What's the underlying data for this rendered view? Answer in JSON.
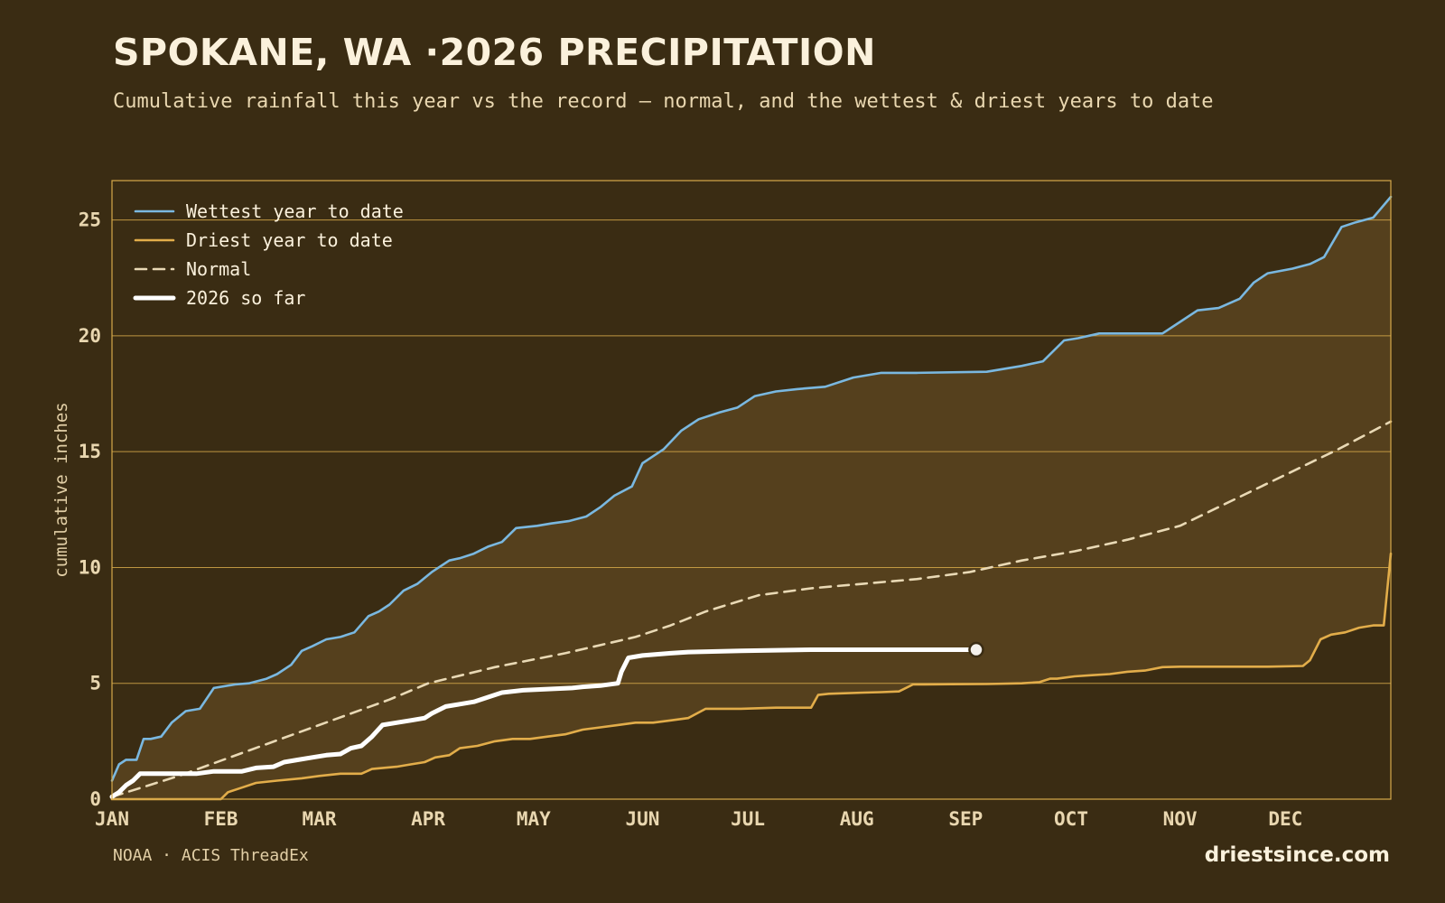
{
  "header": {
    "title": "SPOKANE, WA ·2026 PRECIPITATION",
    "subtitle": "Cumulative rainfall this year vs the record — normal, and the wettest & driest years to date"
  },
  "footer": {
    "source": "NOAA · ACIS ThreadEx",
    "brand": "driestsince.com"
  },
  "colors": {
    "background": "#3a2c13",
    "band_fill": "#55401d",
    "frame": "#d6a94a",
    "wettest": "#7ab8e0",
    "driest": "#e2ad4a",
    "normal": "#e9d9b5",
    "current": "#ffffff"
  },
  "chart_data": {
    "type": "line",
    "title": "SPOKANE, WA ·2026 PRECIPITATION",
    "xlabel": "",
    "ylabel": "cumulative inches",
    "x_unit": "day of year",
    "xlim": [
      1,
      365
    ],
    "ylim": [
      0,
      26.7
    ],
    "x_ticks": [
      {
        "label": "JAN",
        "day": 1
      },
      {
        "label": "FEB",
        "day": 32
      },
      {
        "label": "MAR",
        "day": 60
      },
      {
        "label": "APR",
        "day": 91
      },
      {
        "label": "MAY",
        "day": 121
      },
      {
        "label": "JUN",
        "day": 152
      },
      {
        "label": "JUL",
        "day": 182
      },
      {
        "label": "AUG",
        "day": 213
      },
      {
        "label": "SEP",
        "day": 244
      },
      {
        "label": "OCT",
        "day": 274
      },
      {
        "label": "NOV",
        "day": 305
      },
      {
        "label": "DEC",
        "day": 335
      }
    ],
    "y_ticks": [
      0,
      5,
      10,
      15,
      20,
      25
    ],
    "grid": true,
    "band_between": [
      "Wettest year to date",
      "Driest year to date"
    ],
    "legend_position": "top-left",
    "series": [
      {
        "name": "Wettest year to date",
        "style": "solid",
        "x": [
          1,
          3,
          5,
          8,
          10,
          12,
          15,
          18,
          22,
          26,
          30,
          36,
          40,
          45,
          48,
          52,
          55,
          58,
          62,
          66,
          70,
          74,
          77,
          80,
          84,
          88,
          92,
          97,
          100,
          104,
          108,
          112,
          116,
          122,
          126,
          131,
          136,
          140,
          144,
          149,
          152,
          158,
          163,
          168,
          174,
          179,
          184,
          190,
          196,
          204,
          212,
          220,
          230,
          250,
          260,
          266,
          272,
          276,
          282,
          291,
          300,
          305,
          310,
          316,
          322,
          326,
          330,
          337,
          342,
          346,
          351,
          355,
          360,
          365
        ],
        "values": [
          0.8,
          1.5,
          1.7,
          1.7,
          2.6,
          2.6,
          2.7,
          3.3,
          3.8,
          3.9,
          4.8,
          4.95,
          5.0,
          5.2,
          5.4,
          5.8,
          6.4,
          6.6,
          6.9,
          7.0,
          7.2,
          7.9,
          8.1,
          8.4,
          9.0,
          9.3,
          9.8,
          10.3,
          10.4,
          10.6,
          10.9,
          11.1,
          11.7,
          11.8,
          11.9,
          12.0,
          12.2,
          12.6,
          13.1,
          13.5,
          14.5,
          15.1,
          15.9,
          16.4,
          16.7,
          16.9,
          17.4,
          17.6,
          17.7,
          17.8,
          18.2,
          18.4,
          18.4,
          18.45,
          18.7,
          18.9,
          19.8,
          19.9,
          20.1,
          20.1,
          20.1,
          20.6,
          21.1,
          21.2,
          21.6,
          22.3,
          22.7,
          22.9,
          23.1,
          23.4,
          24.7,
          24.9,
          25.1,
          26.0
        ]
      },
      {
        "name": "Driest year to date",
        "style": "solid",
        "x": [
          1,
          32,
          34,
          38,
          42,
          48,
          55,
          60,
          66,
          72,
          75,
          82,
          86,
          90,
          93,
          97,
          100,
          105,
          110,
          115,
          120,
          125,
          130,
          135,
          140,
          145,
          150,
          155,
          160,
          165,
          170,
          180,
          190,
          200,
          202,
          205,
          215,
          220,
          225,
          229,
          232,
          240,
          250,
          260,
          265,
          268,
          270,
          275,
          280,
          285,
          290,
          295,
          300,
          305,
          310,
          320,
          330,
          340,
          342,
          345,
          348,
          352,
          356,
          360,
          363,
          365
        ],
        "values": [
          0,
          0,
          0.3,
          0.5,
          0.7,
          0.8,
          0.9,
          1.0,
          1.1,
          1.1,
          1.3,
          1.4,
          1.5,
          1.6,
          1.8,
          1.9,
          2.2,
          2.3,
          2.5,
          2.6,
          2.6,
          2.7,
          2.8,
          3.0,
          3.1,
          3.2,
          3.3,
          3.3,
          3.4,
          3.5,
          3.9,
          3.9,
          3.95,
          3.95,
          4.5,
          4.55,
          4.6,
          4.62,
          4.65,
          4.95,
          4.95,
          4.96,
          4.97,
          5.0,
          5.05,
          5.2,
          5.2,
          5.3,
          5.35,
          5.4,
          5.5,
          5.55,
          5.7,
          5.72,
          5.72,
          5.72,
          5.72,
          5.75,
          6.0,
          6.9,
          7.1,
          7.2,
          7.4,
          7.5,
          7.5,
          10.6
        ]
      },
      {
        "name": "Normal",
        "style": "dashed",
        "x": [
          1,
          20,
          40,
          60,
          80,
          91,
          110,
          130,
          150,
          160,
          170,
          185,
          200,
          215,
          230,
          245,
          260,
          275,
          290,
          305,
          320,
          335,
          350,
          365
        ],
        "values": [
          0.1,
          1.0,
          2.1,
          3.2,
          4.3,
          5.0,
          5.7,
          6.3,
          7.0,
          7.5,
          8.1,
          8.8,
          9.1,
          9.3,
          9.5,
          9.8,
          10.3,
          10.7,
          11.2,
          11.8,
          12.9,
          14.0,
          15.1,
          16.3
        ]
      },
      {
        "name": "2026 so far",
        "style": "solid-thick",
        "x": [
          1,
          3,
          5,
          7,
          9,
          15,
          25,
          30,
          34,
          38,
          42,
          47,
          50,
          54,
          58,
          62,
          66,
          69,
          72,
          75,
          78,
          82,
          86,
          90,
          92,
          96,
          100,
          104,
          108,
          112,
          118,
          125,
          132,
          135,
          140,
          145,
          146,
          148,
          152,
          160,
          165,
          180,
          200,
          220,
          240,
          247
        ],
        "values": [
          0.1,
          0.3,
          0.6,
          0.8,
          1.1,
          1.1,
          1.1,
          1.2,
          1.2,
          1.2,
          1.35,
          1.4,
          1.6,
          1.7,
          1.8,
          1.9,
          1.95,
          2.2,
          2.3,
          2.7,
          3.2,
          3.3,
          3.4,
          3.5,
          3.7,
          4.0,
          4.1,
          4.2,
          4.4,
          4.6,
          4.7,
          4.75,
          4.8,
          4.85,
          4.9,
          5.0,
          5.5,
          6.1,
          6.2,
          6.3,
          6.35,
          6.4,
          6.45,
          6.45,
          6.45,
          6.45
        ]
      }
    ]
  }
}
